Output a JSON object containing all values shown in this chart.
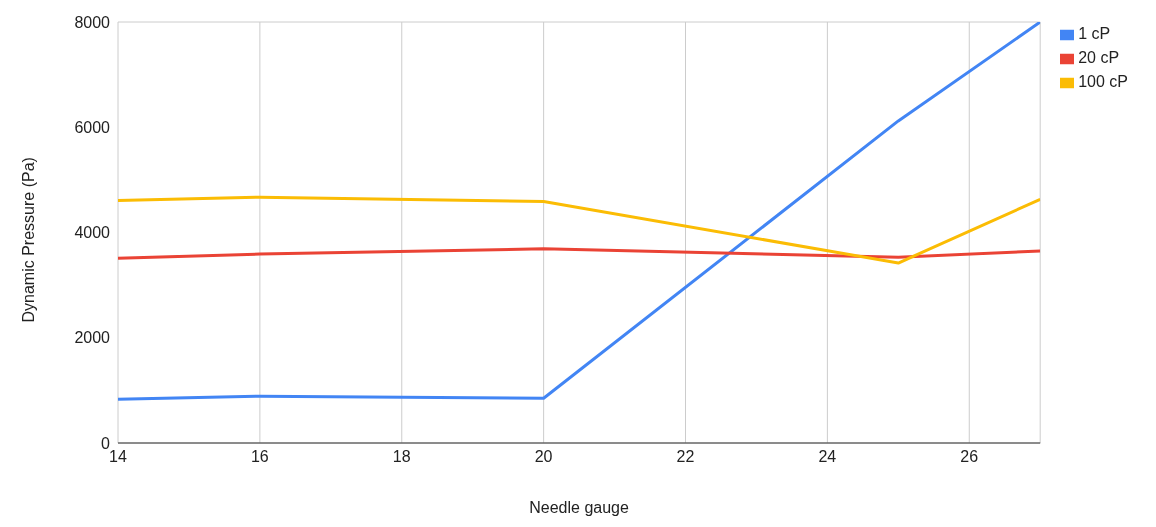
{
  "chart_data": {
    "type": "line",
    "xlabel": "Needle gauge",
    "ylabel": "Dynamic Pressure (Pa)",
    "x": [
      14,
      16,
      20,
      25,
      27
    ],
    "series": [
      {
        "name": "1 cP",
        "color": "#4285f4",
        "values": [
          830,
          890,
          850,
          6120,
          8000
        ]
      },
      {
        "name": "20 cP",
        "color": "#ea4335",
        "values": [
          3510,
          3590,
          3690,
          3530,
          3650
        ]
      },
      {
        "name": "100 cP",
        "color": "#fbbc04",
        "values": [
          4610,
          4670,
          4590,
          3420,
          4630
        ]
      }
    ],
    "xlim": [
      14,
      27
    ],
    "xticks": [
      14,
      16,
      18,
      20,
      22,
      24,
      26
    ],
    "ylim": [
      0,
      8000
    ],
    "yticks": [
      0,
      2000,
      4000,
      6000,
      8000
    ],
    "grid": true,
    "legend": "top right",
    "marker": "none",
    "line_style": "solid"
  }
}
